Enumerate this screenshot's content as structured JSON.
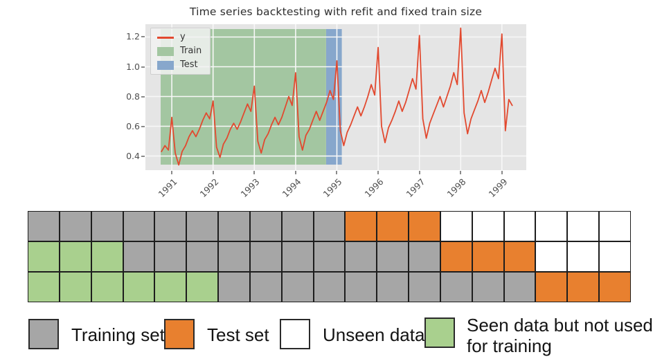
{
  "chart": {
    "title": "Time series backtesting with refit and fixed train size",
    "plot_bg": "#e5e5e5",
    "grid_color": "#f8f8f8",
    "legend": {
      "items": [
        {
          "label": "y",
          "type": "line",
          "color": "#e2492f"
        },
        {
          "label": "Train",
          "type": "patch",
          "color": "#a3c6a1"
        },
        {
          "label": "Test",
          "type": "patch",
          "color": "#87a7cc"
        }
      ]
    }
  },
  "chart_data": {
    "type": "line",
    "title": "Time series backtesting with refit and fixed train size",
    "xlim": [
      1990.36,
      1999.59
    ],
    "ylim": [
      0.305,
      1.286
    ],
    "x_ticks": [
      1991,
      1992,
      1993,
      1994,
      1995,
      1996,
      1997,
      1998,
      1999
    ],
    "y_ticks": [
      0.4,
      0.6,
      0.8,
      1.0,
      1.2
    ],
    "y_tick_labels": [
      "0.4",
      "0.6",
      "0.8",
      "1.0",
      "1.2"
    ],
    "grid": true,
    "legend_position": "upper left",
    "regions": [
      {
        "name": "Train",
        "x0": 1990.73,
        "x1": 1994.74,
        "color": "#a3c6a1"
      },
      {
        "name": "Test",
        "x0": 1994.74,
        "x1": 1995.12,
        "color": "#87a7cc"
      }
    ],
    "series": [
      {
        "name": "y",
        "color": "#e2492f",
        "start_x": 1990.75,
        "x_step": 0.0833333,
        "values": [
          0.43,
          0.47,
          0.44,
          0.66,
          0.42,
          0.34,
          0.43,
          0.47,
          0.53,
          0.57,
          0.53,
          0.58,
          0.64,
          0.69,
          0.65,
          0.77,
          0.46,
          0.39,
          0.48,
          0.52,
          0.58,
          0.62,
          0.58,
          0.63,
          0.69,
          0.75,
          0.7,
          0.87,
          0.5,
          0.42,
          0.51,
          0.55,
          0.61,
          0.66,
          0.61,
          0.66,
          0.73,
          0.8,
          0.74,
          0.96,
          0.53,
          0.44,
          0.54,
          0.58,
          0.64,
          0.7,
          0.64,
          0.7,
          0.76,
          0.84,
          0.78,
          1.04,
          0.57,
          0.47,
          0.56,
          0.61,
          0.67,
          0.73,
          0.67,
          0.73,
          0.8,
          0.88,
          0.81,
          1.13,
          0.6,
          0.49,
          0.59,
          0.64,
          0.7,
          0.77,
          0.7,
          0.76,
          0.84,
          0.92,
          0.85,
          1.21,
          0.65,
          0.52,
          0.62,
          0.68,
          0.74,
          0.8,
          0.73,
          0.8,
          0.87,
          0.96,
          0.88,
          1.26,
          0.69,
          0.55,
          0.65,
          0.71,
          0.77,
          0.84,
          0.76,
          0.83,
          0.91,
          0.99,
          0.92,
          1.22,
          0.57,
          0.78,
          0.74
        ]
      }
    ]
  },
  "diagram": {
    "rows": [
      "TTTTTTTTTTXXXUUUUUU",
      "SSSTTTTTTTTTTXXXUUU",
      "SSSSSSTTTTTTTTTTXXX"
    ],
    "cell_meaning": {
      "T": "training-set",
      "X": "test-set",
      "U": "unseen-data",
      "S": "seen-data-not-used"
    },
    "cell_colors": {
      "T": "#a6a6a6",
      "X": "#e8802f",
      "U": "#ffffff",
      "S": "#a9d08e"
    }
  },
  "legend": {
    "items": [
      {
        "label": "Training set",
        "color": "#a6a6a6"
      },
      {
        "label": "Test set",
        "color": "#e8802f"
      },
      {
        "label": "Unseen data",
        "color": "#ffffff"
      },
      {
        "label": "Seen data but not used for training",
        "line1": "Seen data but not used",
        "line2": "for training",
        "color": "#a9d08e"
      }
    ]
  }
}
